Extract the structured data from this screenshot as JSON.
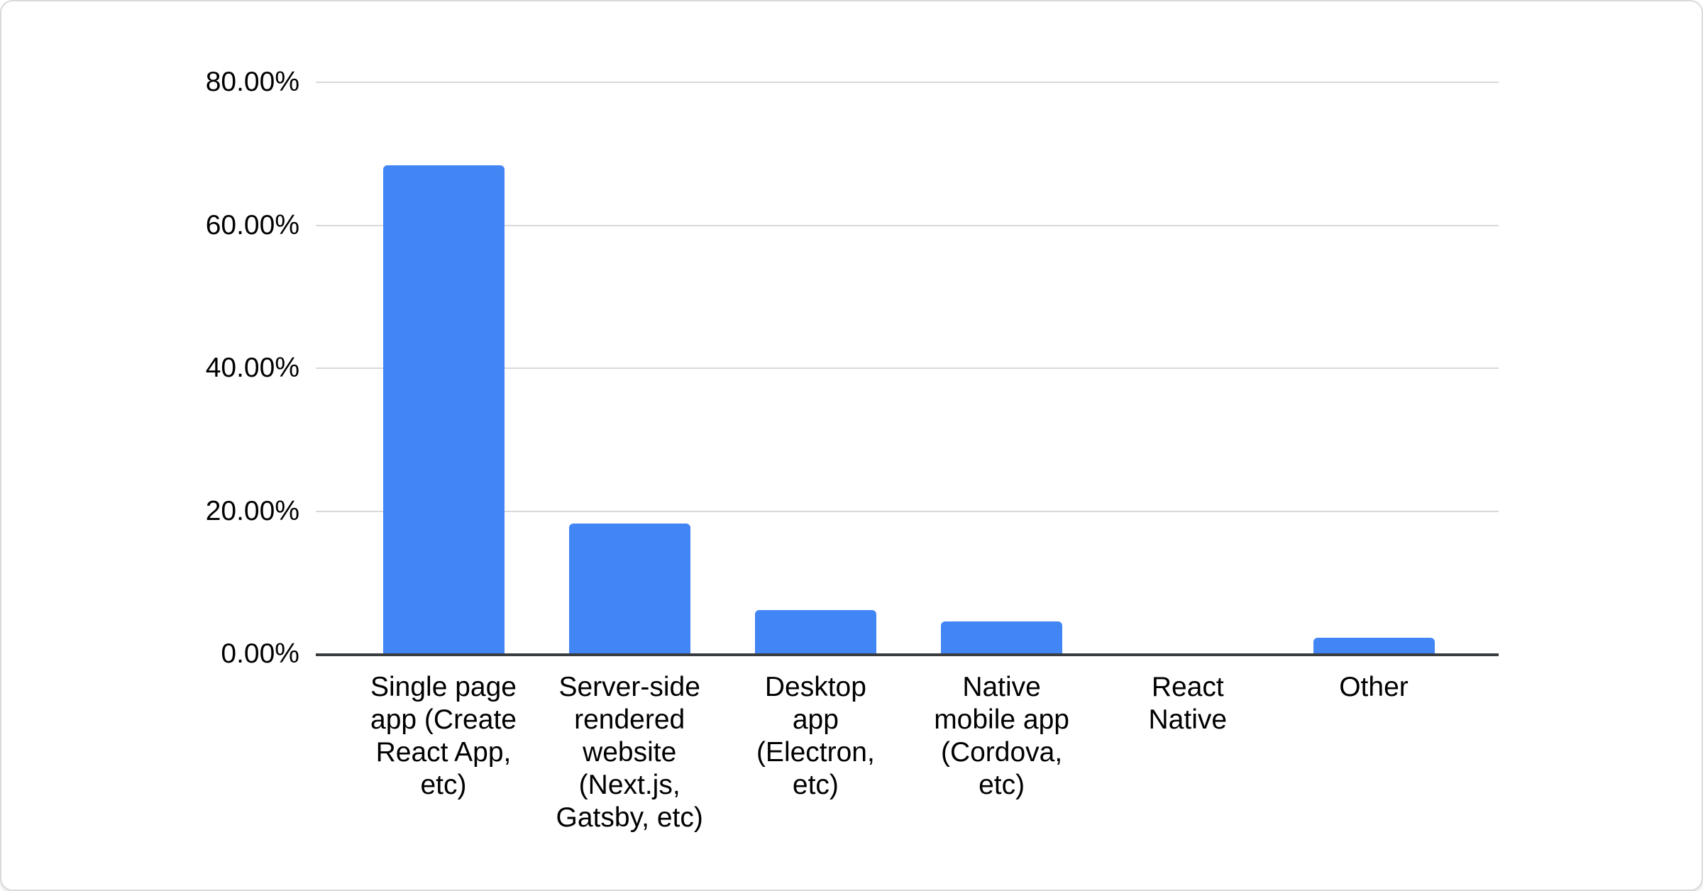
{
  "chart_data": {
    "type": "bar",
    "title": "",
    "categories": [
      "Single page app (Create React App, etc)",
      "Server-side rendered website (Next.js, Gatsby, etc)",
      "Desktop app (Electron, etc)",
      "Native mobile app (Cordova, etc)",
      "React Native",
      "Other"
    ],
    "category_lines": [
      [
        "Single page",
        "app (Create",
        "React App,",
        "etc)"
      ],
      [
        "Server-side",
        "rendered",
        "website",
        "(Next.js,",
        "Gatsby, etc)"
      ],
      [
        "Desktop",
        "app",
        "(Electron,",
        "etc)"
      ],
      [
        "Native",
        "mobile app",
        "(Cordova,",
        "etc)"
      ],
      [
        "React",
        "Native"
      ],
      [
        "Other"
      ]
    ],
    "values": [
      68.4,
      18.3,
      6.2,
      4.6,
      0,
      2.3
    ],
    "unit": "%",
    "ylim": [
      0,
      80
    ],
    "yticks": [
      {
        "value": 0,
        "label": "0.00%"
      },
      {
        "value": 20,
        "label": "20.00%"
      },
      {
        "value": 40,
        "label": "40.00%"
      },
      {
        "value": 60,
        "label": "60.00%"
      },
      {
        "value": 80,
        "label": "80.00%"
      }
    ],
    "grid": true,
    "legend": "none",
    "colors": {
      "bar": "#4285f4",
      "gridline": "#d9d9d9",
      "axis_line": "#3a3d40",
      "label": "#000000",
      "card_background": "#ffffff",
      "card_border": "#d9dadd"
    }
  }
}
